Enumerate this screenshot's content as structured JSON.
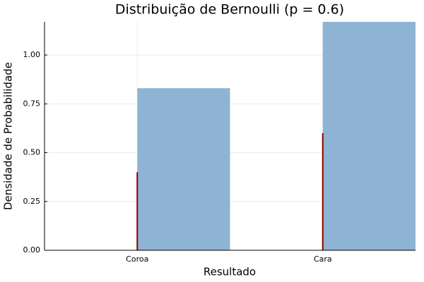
{
  "chart_data": {
    "type": "histogram",
    "title": "Distribuição de Bernoulli (p = 0.6)",
    "x_label": "Resultado",
    "y_label": "Densidade de Probabilidade",
    "bins": [
      0,
      0.5,
      1,
      1.5
    ],
    "values": [
      0.83,
      0,
      1.17
    ],
    "color": "#8fb3d4",
    "stems": {
      "type": "stem",
      "x": [
        0,
        1
      ],
      "values": [
        0.4,
        0.6
      ],
      "color": "#8b0000"
    },
    "xlim": [
      -0.5,
      1.5
    ],
    "ylim": [
      0,
      1.17
    ],
    "xticks": [
      {
        "value": 0,
        "label": "Coroa"
      },
      {
        "value": 1,
        "label": "Cara"
      }
    ],
    "yticks": [
      {
        "value": 0,
        "label": "0.00"
      },
      {
        "value": 0.25,
        "label": "0.25"
      },
      {
        "value": 0.5,
        "label": "0.50"
      },
      {
        "value": 0.75,
        "label": "0.75"
      },
      {
        "value": 1,
        "label": "1.00"
      }
    ],
    "grid": true
  }
}
